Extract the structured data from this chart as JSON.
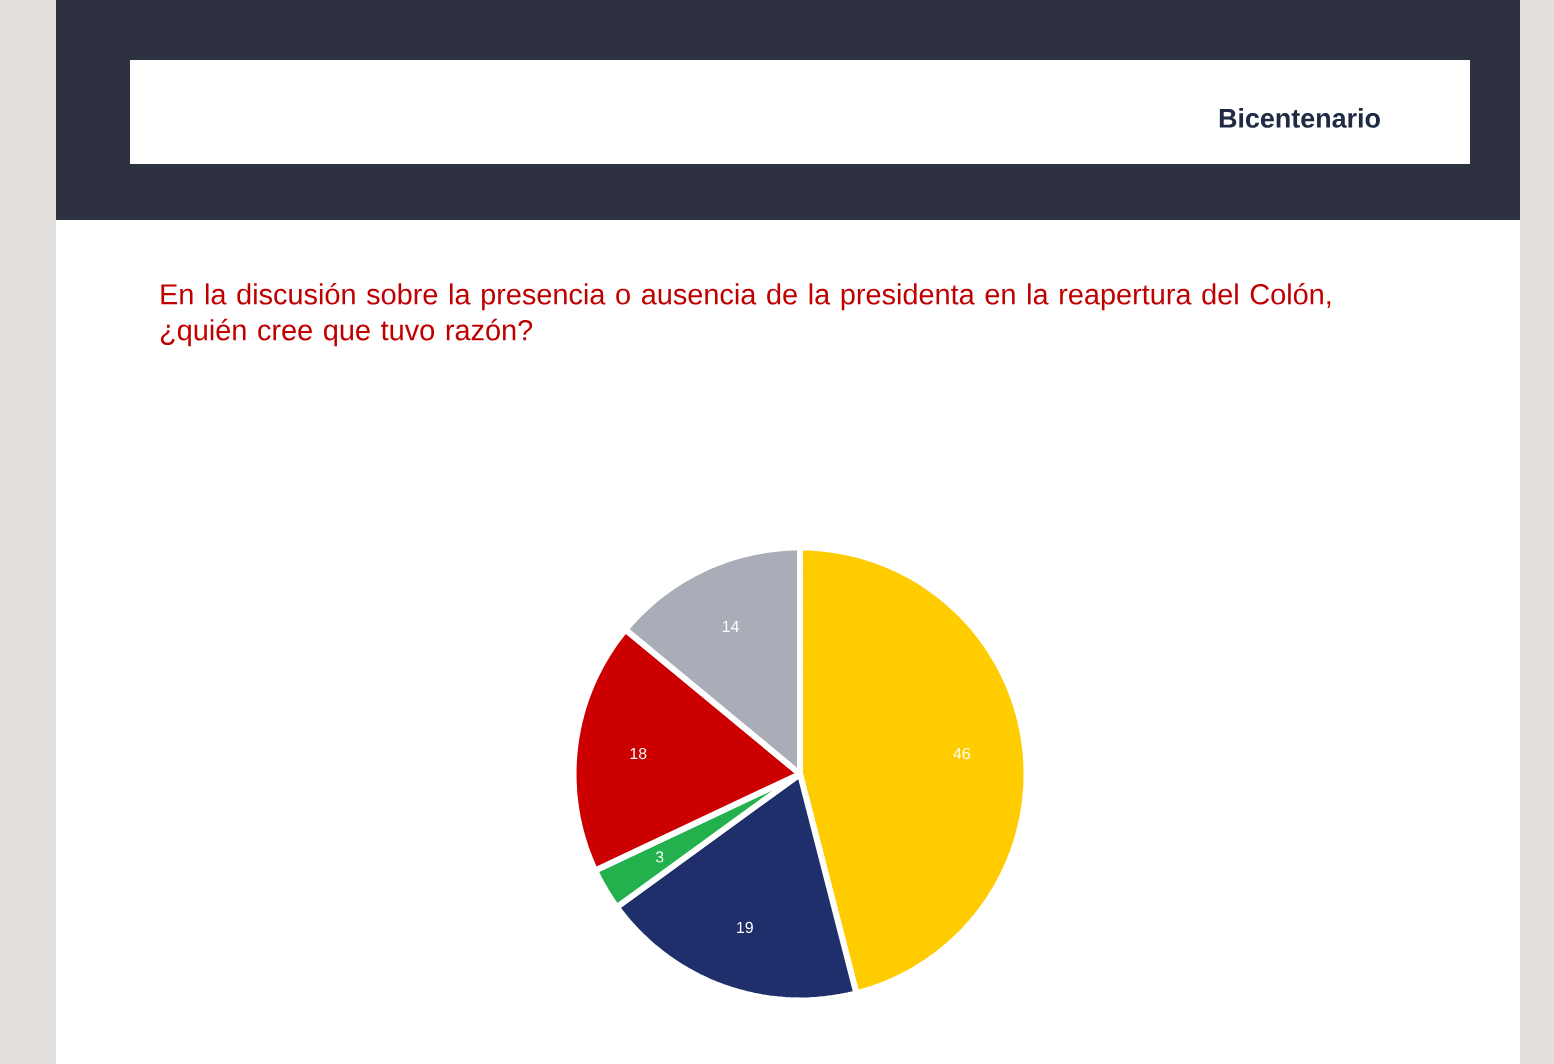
{
  "chart_data": {
    "type": "pie",
    "title": "En la discusión sobre la presencia o ausencia de la presidenta en la reapertura del Colón, ¿quién cree que tuvo razón?",
    "subtitle": "Bicentenario",
    "categories": [
      null,
      null,
      null,
      null,
      null
    ],
    "values": [
      46,
      19,
      3,
      18,
      14
    ],
    "colors": [
      "#ffcc00",
      "#1f2f6b",
      "#22b14c",
      "#cc0000",
      "#a8adb8"
    ],
    "data_labels": true
  }
}
